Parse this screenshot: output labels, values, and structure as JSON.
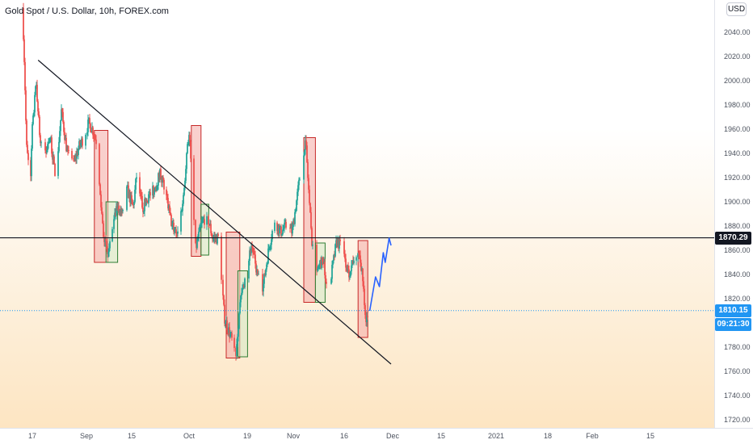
{
  "header": {
    "title": "Gold Spot / U.S. Dollar, 10h, FOREX.com",
    "currency_button": "USD"
  },
  "price_labels": {
    "level": "1870.29",
    "current": "1810.15",
    "countdown": "09:21:30",
    "level_value": 1870.29,
    "current_value": 1810.15
  },
  "colors": {
    "up": "#26a69a",
    "down": "#ef5350",
    "level_label_bg": "#131722",
    "current_label_bg": "#2196f3",
    "projection": "#2962ff",
    "red_box_fill": "#f4aaa5",
    "red_box_stroke": "#c62828",
    "green_box_fill": "#cfe8c4",
    "green_box_stroke": "#2e7d32"
  },
  "chart_data": {
    "type": "candlestick",
    "title": "Gold Spot / U.S. Dollar, 10h, FOREX.com",
    "ylim": [
      1710,
      2060
    ],
    "y_ticks": [
      1720,
      1740,
      1760,
      1780,
      1800,
      1820,
      1840,
      1860,
      1880,
      1900,
      1920,
      1940,
      1960,
      1980,
      2000,
      2020,
      2040
    ],
    "x_tick_labels": [
      "17",
      "Sep",
      "15",
      "Oct",
      "19",
      "Nov",
      "16",
      "Dec",
      "15",
      "2021",
      "18",
      "Feb",
      "15"
    ],
    "price_path": [
      {
        "x": "Aug 12",
        "y": 2060
      },
      {
        "x": "Aug 13",
        "y": 2010
      },
      {
        "x": "Aug 14",
        "y": 1945
      },
      {
        "x": "Aug 16",
        "y": 1918
      },
      {
        "x": "Aug 17",
        "y": 1960
      },
      {
        "x": "Aug 19",
        "y": 1998
      },
      {
        "x": "Aug 21",
        "y": 1950
      },
      {
        "x": "Aug 24",
        "y": 1940
      },
      {
        "x": "Aug 26",
        "y": 1955
      },
      {
        "x": "Aug 29",
        "y": 1920
      },
      {
        "x": "Sep 1",
        "y": 1975
      },
      {
        "x": "Sep 4",
        "y": 1940
      },
      {
        "x": "Sep 7",
        "y": 1930
      },
      {
        "x": "Sep 10",
        "y": 1945
      },
      {
        "x": "Sep 13",
        "y": 1955
      },
      {
        "x": "Sep 15",
        "y": 1965
      },
      {
        "x": "Sep 17",
        "y": 1960
      },
      {
        "x": "Sep 19",
        "y": 1950
      },
      {
        "x": "Sep 21",
        "y": 1905
      },
      {
        "x": "Sep 23",
        "y": 1870
      },
      {
        "x": "Sep 25",
        "y": 1855
      },
      {
        "x": "Sep 27",
        "y": 1870
      },
      {
        "x": "Sep 29",
        "y": 1892
      },
      {
        "x": "Oct 2",
        "y": 1895
      },
      {
        "x": "Oct 5",
        "y": 1910
      },
      {
        "x": "Oct 8",
        "y": 1895
      },
      {
        "x": "Oct 10",
        "y": 1925
      },
      {
        "x": "Oct 13",
        "y": 1895
      },
      {
        "x": "Oct 16",
        "y": 1905
      },
      {
        "x": "Oct 19",
        "y": 1910
      },
      {
        "x": "Oct 22",
        "y": 1925
      },
      {
        "x": "Oct 25",
        "y": 1905
      },
      {
        "x": "Oct 28",
        "y": 1880
      },
      {
        "x": "Oct 31",
        "y": 1875
      },
      {
        "x": "Nov 3",
        "y": 1905
      },
      {
        "x": "Nov 5",
        "y": 1950
      },
      {
        "x": "Nov 6",
        "y": 1955
      },
      {
        "x": "Nov 9",
        "y": 1860
      },
      {
        "x": "Nov 12",
        "y": 1880
      },
      {
        "x": "Nov 15",
        "y": 1890
      },
      {
        "x": "Nov 18",
        "y": 1870
      },
      {
        "x": "Nov 21",
        "y": 1870
      },
      {
        "x": "Nov 24",
        "y": 1805
      },
      {
        "x": "Nov 27",
        "y": 1790
      },
      {
        "x": "Nov 30",
        "y": 1776
      },
      {
        "x": "Dec 2",
        "y": 1815
      },
      {
        "x": "Dec 5",
        "y": 1840
      },
      {
        "x": "Dec 8",
        "y": 1865
      },
      {
        "x": "Dec 11",
        "y": 1840
      },
      {
        "x": "Dec 14",
        "y": 1830
      },
      {
        "x": "Dec 17",
        "y": 1862
      },
      {
        "x": "Dec 20",
        "y": 1885
      },
      {
        "x": "Dec 23",
        "y": 1875
      },
      {
        "x": "Dec 26",
        "y": 1880
      },
      {
        "x": "Dec 29",
        "y": 1875
      },
      {
        "x": "Dec 31",
        "y": 1898
      },
      {
        "x": "Jan 4",
        "y": 1943
      },
      {
        "x": "Jan 5",
        "y": 1950
      },
      {
        "x": "Jan 8",
        "y": 1870
      },
      {
        "x": "Jan 11",
        "y": 1845
      },
      {
        "x": "Jan 14",
        "y": 1850
      },
      {
        "x": "Jan 16",
        "y": 1830
      },
      {
        "x": "Jan 18",
        "y": 1838
      },
      {
        "x": "Jan 21",
        "y": 1868
      },
      {
        "x": "Jan 24",
        "y": 1860
      },
      {
        "x": "Jan 27",
        "y": 1840
      },
      {
        "x": "Jan 30",
        "y": 1855
      },
      {
        "x": "Feb 1",
        "y": 1860
      },
      {
        "x": "Feb 3",
        "y": 1845
      },
      {
        "x": "Feb 5",
        "y": 1795
      },
      {
        "x": "Feb 6",
        "y": 1810
      }
    ],
    "resistance_line": {
      "y": 1870.29
    },
    "trendline": {
      "start": {
        "x": "Aug 20",
        "y": 2017
      },
      "end": {
        "x": "Feb 18",
        "y": 1766
      }
    },
    "highlight_boxes": [
      {
        "color": "red",
        "x": [
          "Sep 18",
          "Sep 25"
        ],
        "y": [
          1850,
          1959
        ]
      },
      {
        "color": "green",
        "x": [
          "Sep 24",
          "Sep 30"
        ],
        "y": [
          1850,
          1900
        ]
      },
      {
        "color": "red",
        "x": [
          "Nov 7",
          "Nov 12"
        ],
        "y": [
          1855,
          1963
        ]
      },
      {
        "color": "green",
        "x": [
          "Nov 12",
          "Nov 16"
        ],
        "y": [
          1856,
          1898
        ]
      },
      {
        "color": "red",
        "x": [
          "Nov 25",
          "Dec 2"
        ],
        "y": [
          1771,
          1875
        ]
      },
      {
        "color": "green",
        "x": [
          "Dec 1",
          "Dec 6"
        ],
        "y": [
          1772,
          1843
        ]
      },
      {
        "color": "red",
        "x": [
          "Jan 4",
          "Jan 10"
        ],
        "y": [
          1817,
          1953
        ]
      },
      {
        "color": "green",
        "x": [
          "Jan 10",
          "Jan 15"
        ],
        "y": [
          1817,
          1866
        ]
      },
      {
        "color": "red",
        "x": [
          "Feb 1",
          "Feb 6"
        ],
        "y": [
          1788,
          1868
        ]
      }
    ],
    "projection": [
      {
        "x": "Feb 7",
        "y": 1810
      },
      {
        "x": "Feb 10",
        "y": 1838
      },
      {
        "x": "Feb 12",
        "y": 1830
      },
      {
        "x": "Feb 14",
        "y": 1858
      },
      {
        "x": "Feb 15",
        "y": 1850
      },
      {
        "x": "Feb 17",
        "y": 1870
      },
      {
        "x": "Feb 18",
        "y": 1864
      }
    ]
  }
}
